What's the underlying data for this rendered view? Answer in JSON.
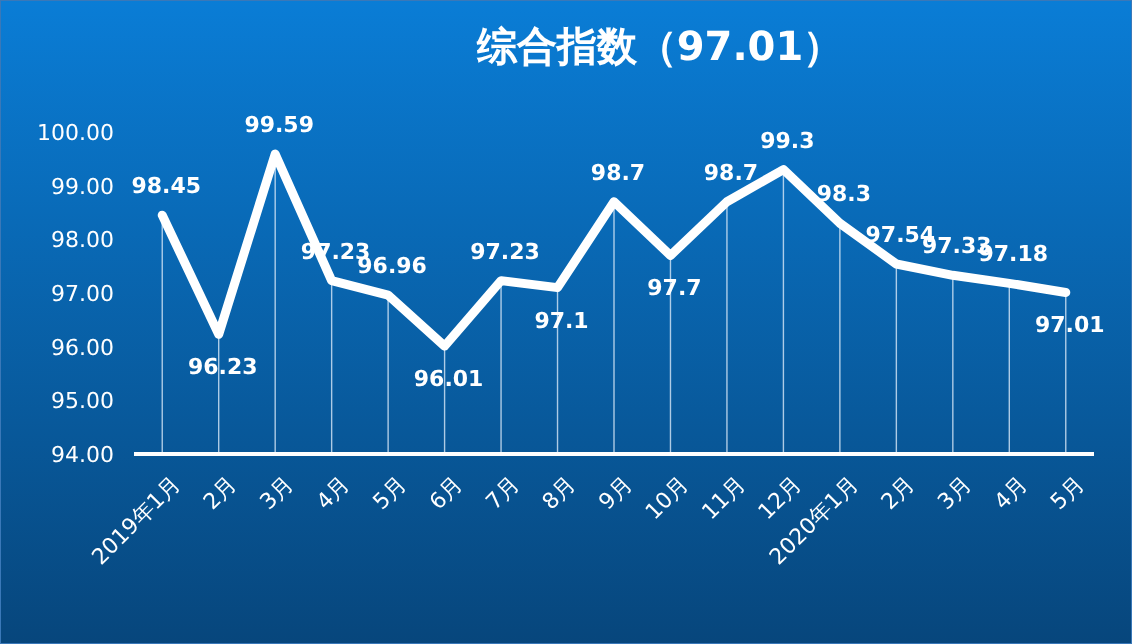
{
  "chart_data": {
    "type": "line",
    "title": "综合指数（97.01）",
    "categories": [
      "2019年1月",
      "2月",
      "3月",
      "4月",
      "5月",
      "6月",
      "7月",
      "8月",
      "9月",
      "10月",
      "11月",
      "12月",
      "2020年1月",
      "2月",
      "3月",
      "4月",
      "5月"
    ],
    "series": [
      {
        "color": "#ffffff",
        "values": [
          98.45,
          96.23,
          99.59,
          97.23,
          96.96,
          96.01,
          97.23,
          97.1,
          98.7,
          97.7,
          98.7,
          99.3,
          98.3,
          97.54,
          97.33,
          97.18,
          97.01
        ],
        "value_labels": [
          "98.45",
          "96.23",
          "99.59",
          "97.23",
          "96.96",
          "96.01",
          "97.23",
          "97.1",
          "98.7",
          "97.7",
          "98.7",
          "99.3",
          "98.3",
          "97.54",
          "97.33",
          "97.18",
          "97.01"
        ]
      }
    ],
    "ylim": [
      94,
      100
    ],
    "yticks": [
      {
        "value": 94,
        "label": "94.00"
      },
      {
        "value": 95,
        "label": "95.00"
      },
      {
        "value": 96,
        "label": "96.00"
      },
      {
        "value": 97,
        "label": "97.00"
      },
      {
        "value": 98,
        "label": "98.00"
      },
      {
        "value": 99,
        "label": "99.00"
      },
      {
        "value": 100,
        "label": "100.00"
      }
    ],
    "grid": "x",
    "marker": "none",
    "line_style": "solid"
  }
}
